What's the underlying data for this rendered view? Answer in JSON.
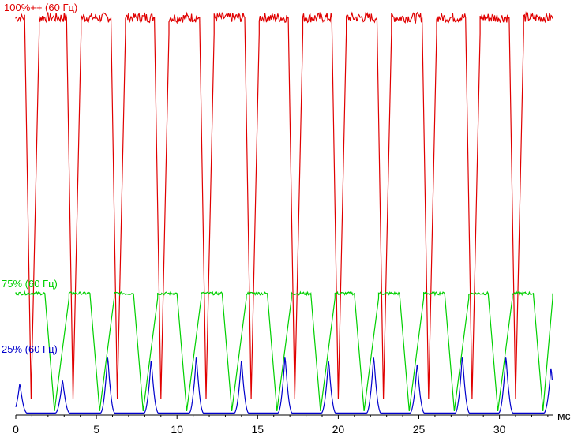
{
  "chart_data": {
    "type": "line",
    "xlabel": "мс",
    "ylabel": "",
    "xlim": [
      0,
      33.3
    ],
    "ylim": [
      0,
      100
    ],
    "xticks": [
      0,
      5,
      10,
      15,
      20,
      25,
      30
    ],
    "grid": false,
    "period_ms": 2.77,
    "series": [
      {
        "name": "100%++ (60 Гц)",
        "color": "#e00000",
        "kind": "square",
        "low": 4,
        "high": 98,
        "edges_ms": [
          [
            0.55,
            0.95,
            1.45
          ],
          [
            3.15,
            3.55,
            4.05
          ],
          [
            5.9,
            6.3,
            6.8
          ],
          [
            8.6,
            9.0,
            9.5
          ],
          [
            11.4,
            11.8,
            12.3
          ],
          [
            14.2,
            14.6,
            15.1
          ],
          [
            16.9,
            17.3,
            17.8
          ],
          [
            19.6,
            20.0,
            20.5
          ],
          [
            22.4,
            22.8,
            23.3
          ],
          [
            25.2,
            25.6,
            26.1
          ],
          [
            27.9,
            28.3,
            28.8
          ],
          [
            30.6,
            31.0,
            31.5
          ]
        ]
      },
      {
        "name": "75% (60 Гц)",
        "color": "#00d000",
        "kind": "square",
        "low": 1,
        "high": 30,
        "edges_ms": [
          [
            1.8,
            2.4,
            3.3
          ],
          [
            4.6,
            5.2,
            6.1
          ],
          [
            7.3,
            7.9,
            8.8
          ],
          [
            10.0,
            10.6,
            11.5
          ],
          [
            12.8,
            13.4,
            14.3
          ],
          [
            15.6,
            16.2,
            17.1
          ],
          [
            18.3,
            18.9,
            19.8
          ],
          [
            21.0,
            21.6,
            22.5
          ],
          [
            23.8,
            24.4,
            25.3
          ],
          [
            26.6,
            27.2,
            28.1
          ],
          [
            29.3,
            29.9,
            30.8
          ],
          [
            32.1,
            32.7,
            33.3
          ]
        ]
      },
      {
        "name": "25% (60 Гц)",
        "color": "#0000cc",
        "kind": "pulse",
        "low": 0.5,
        "peaks": [
          {
            "x": 0.25,
            "y": 8
          },
          {
            "x": 2.9,
            "y": 9
          },
          {
            "x": 5.7,
            "y": 15
          },
          {
            "x": 8.4,
            "y": 14
          },
          {
            "x": 11.2,
            "y": 15
          },
          {
            "x": 14.0,
            "y": 14
          },
          {
            "x": 16.7,
            "y": 15
          },
          {
            "x": 19.4,
            "y": 14
          },
          {
            "x": 22.2,
            "y": 15
          },
          {
            "x": 24.9,
            "y": 13
          },
          {
            "x": 27.7,
            "y": 15
          },
          {
            "x": 30.4,
            "y": 15
          },
          {
            "x": 33.2,
            "y": 12
          }
        ]
      }
    ]
  }
}
